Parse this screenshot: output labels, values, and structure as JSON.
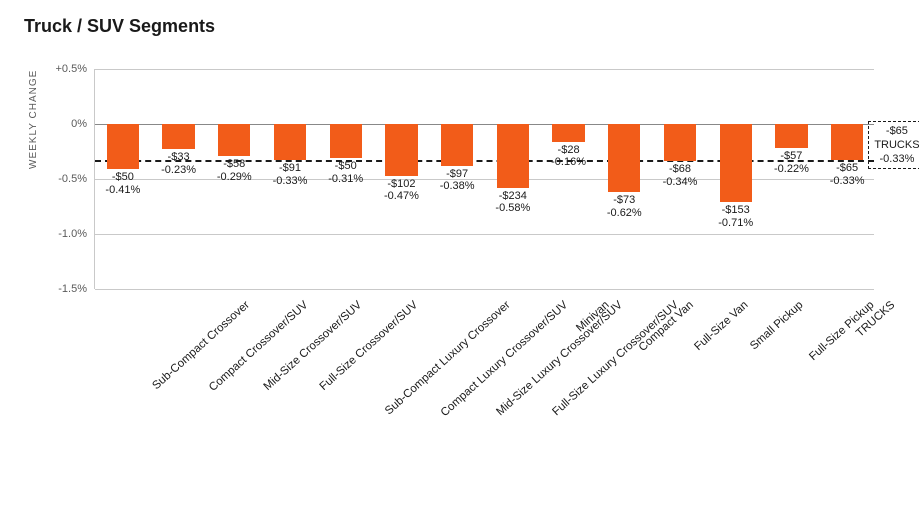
{
  "title": "Truck / SUV Segments",
  "chart": {
    "type": "bar",
    "ylabel": "WEEKLY CHANGE",
    "ylim": [
      -1.5,
      0.5
    ],
    "ytick_step": 0.5,
    "yticks": [
      {
        "v": 0.5,
        "label": "+0.5%"
      },
      {
        "v": 0.0,
        "label": "0%"
      },
      {
        "v": -0.5,
        "label": "-0.5%"
      },
      {
        "v": -1.0,
        "label": "-1.0%"
      },
      {
        "v": -1.5,
        "label": "-1.5%"
      }
    ],
    "background_color": "#ffffff",
    "grid_color": "#c9c9c9",
    "bar_color": "#f25c19",
    "text_color": "#1a1a1a",
    "bar_width": 0.58,
    "label_fontsize": 11,
    "xlabel_fontsize": 11.5,
    "xlabel_rotation_deg": -42,
    "reference": {
      "value_pct": -0.33,
      "box_lines": [
        "-$65",
        "TRUCKS",
        "-0.33%"
      ]
    },
    "categories": [
      "Sub-Compact Crossover",
      "Compact Crossover/SUV",
      "Mid-Size Crossover/SUV",
      "Full-Size Crossover/SUV",
      "Sub-Compact Luxury Crossover",
      "Compact Luxury Crossover/SUV",
      "Mid-Size Luxury Crossover/SUV",
      "Full-Size Luxury Crossover/SUV",
      "Minivan",
      "Compact Van",
      "Full-Size Van",
      "Small Pickup",
      "Full-Size Pickup",
      "TRUCKS"
    ],
    "values_pct": [
      -0.41,
      -0.23,
      -0.29,
      -0.33,
      -0.31,
      -0.47,
      -0.38,
      -0.58,
      -0.16,
      -0.62,
      -0.34,
      -0.71,
      -0.22,
      -0.33
    ],
    "values_usd": [
      -50,
      -33,
      -58,
      -91,
      -50,
      -102,
      -97,
      -234,
      -28,
      -73,
      -68,
      -153,
      -57,
      -65
    ],
    "bar_labels": [
      {
        "line1": "-$50",
        "line2": "-0.41%"
      },
      {
        "line1": "-$33",
        "line2": "-0.23%"
      },
      {
        "line1": "-$58",
        "line2": "-0.29%"
      },
      {
        "line1": "-$91",
        "line2": "-0.33%"
      },
      {
        "line1": "-$50",
        "line2": "-0.31%"
      },
      {
        "line1": "-$102",
        "line2": "-0.47%"
      },
      {
        "line1": "-$97",
        "line2": "-0.38%"
      },
      {
        "line1": "-$234",
        "line2": "-0.58%"
      },
      {
        "line1": "-$28",
        "line2": "-0.16%"
      },
      {
        "line1": "-$73",
        "line2": "-0.62%"
      },
      {
        "line1": "-$68",
        "line2": "-0.34%"
      },
      {
        "line1": "-$153",
        "line2": "-0.71%"
      },
      {
        "line1": "-$57",
        "line2": "-0.22%"
      },
      {
        "line1": "-$65",
        "line2": "-0.33%"
      }
    ]
  }
}
